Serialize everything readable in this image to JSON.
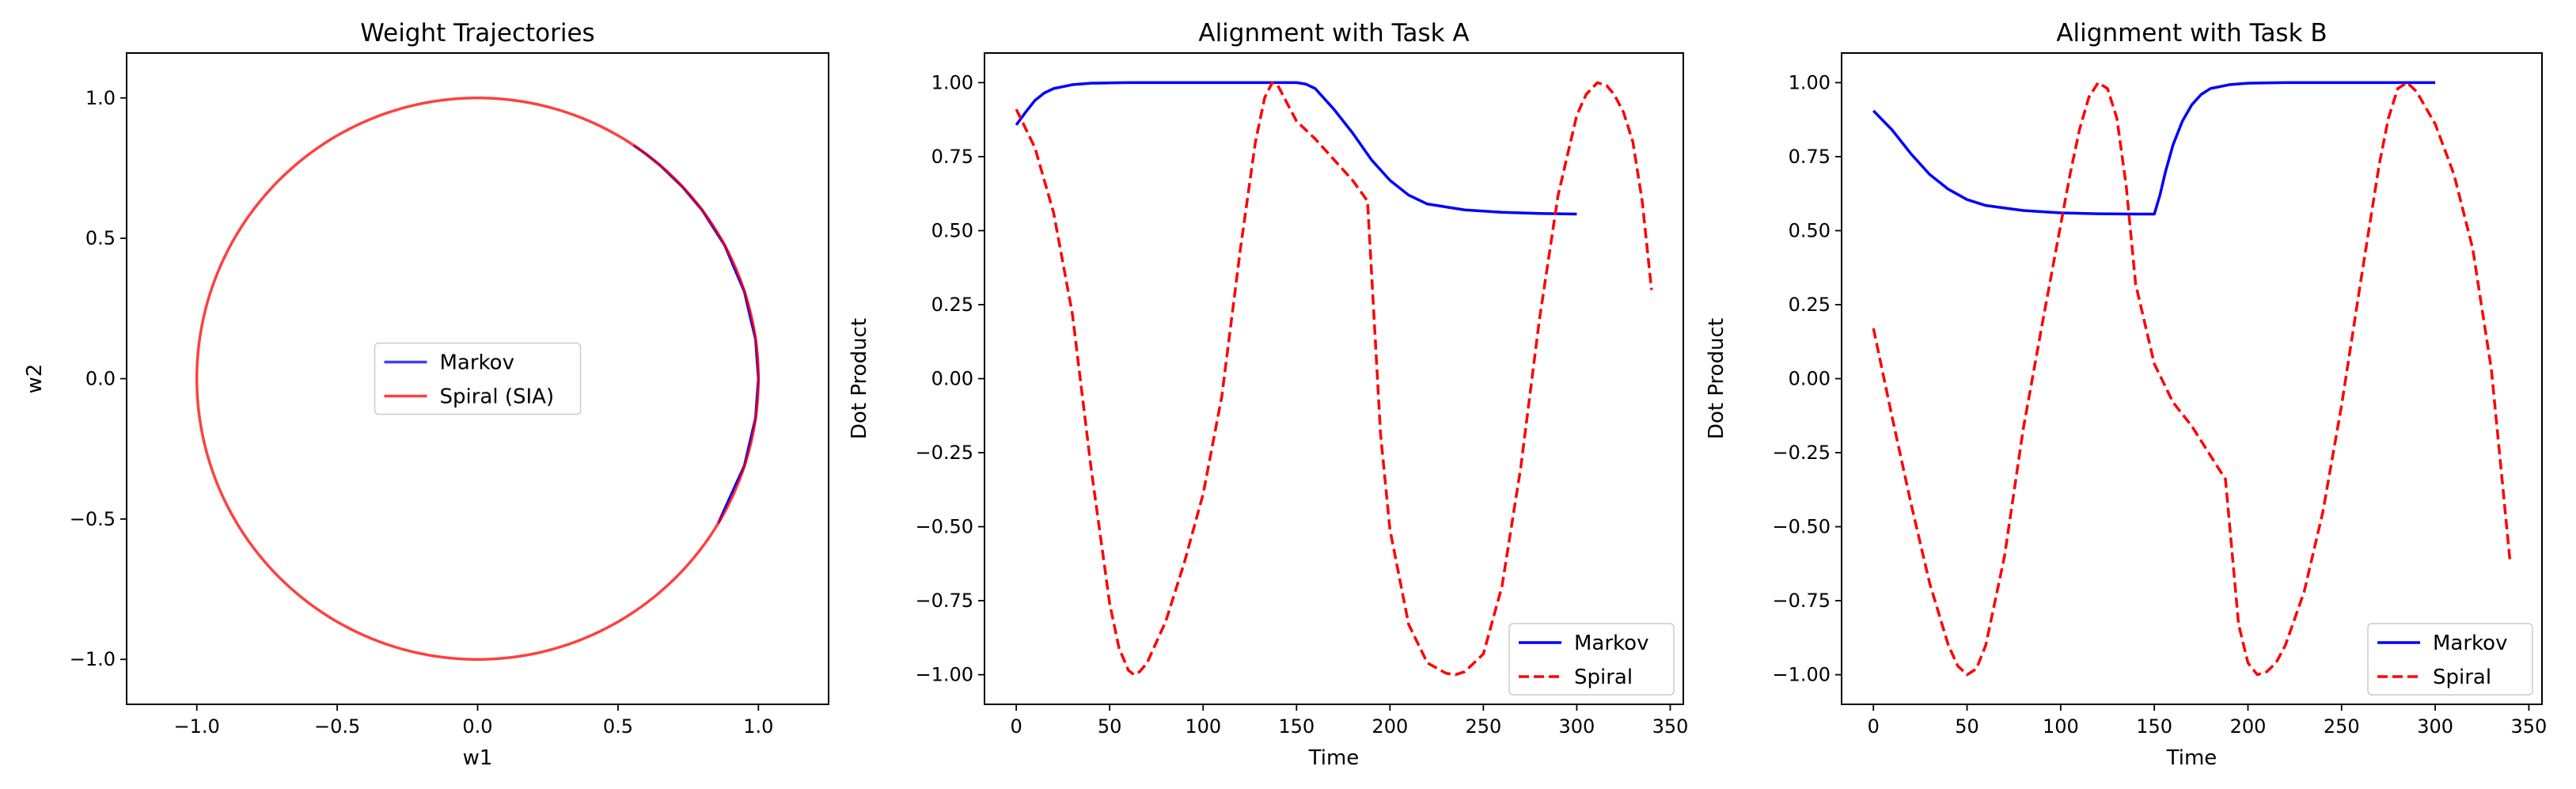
{
  "chart_data": [
    {
      "type": "line",
      "title": "Weight Trajectories",
      "xlabel": "w1",
      "ylabel": "w2",
      "xlim": [
        -1.25,
        1.25
      ],
      "ylim": [
        -1.16,
        1.16
      ],
      "xticks": [
        -1.0,
        -0.5,
        0.0,
        0.5,
        1.0
      ],
      "yticks": [
        -1.0,
        -0.5,
        0.0,
        0.5,
        1.0
      ],
      "xtick_labels": [
        "−1.0",
        "−0.5",
        "0.0",
        "0.5",
        "1.0"
      ],
      "ytick_labels": [
        "−1.0",
        "−0.5",
        "0.0",
        "0.5",
        "1.0"
      ],
      "legend": "center",
      "grid": false,
      "series": [
        {
          "name": "Markov",
          "color": "#0000ff",
          "style": "solid",
          "x": [
            0.857,
            0.95,
            0.99,
            1.0,
            0.99,
            0.95,
            0.88,
            0.8,
            0.73,
            0.65,
            0.6,
            0.556
          ],
          "y": [
            -0.515,
            -0.31,
            -0.14,
            0.0,
            0.14,
            0.31,
            0.475,
            0.6,
            0.683,
            0.76,
            0.8,
            0.831
          ]
        },
        {
          "name": "Spiral (SIA)",
          "color": "#ff0000",
          "style": "solid",
          "parametric": "unit-circle",
          "radius": 1.0
        }
      ]
    },
    {
      "type": "line",
      "title": "Alignment with Task A",
      "xlabel": "Time",
      "ylabel": "Dot Product",
      "xlim": [
        -17,
        357
      ],
      "ylim": [
        -1.1,
        1.1
      ],
      "xticks": [
        0,
        50,
        100,
        150,
        200,
        250,
        300,
        350
      ],
      "yticks": [
        1.0,
        0.75,
        0.5,
        0.25,
        0.0,
        -0.25,
        -0.5,
        -0.75,
        -1.0
      ],
      "xtick_labels": [
        "0",
        "50",
        "100",
        "150",
        "200",
        "250",
        "300",
        "350"
      ],
      "ytick_labels": [
        "1.00",
        "0.75",
        "0.50",
        "0.25",
        "0.00",
        "−0.25",
        "−0.50",
        "−0.75",
        "−1.00"
      ],
      "legend": "bottom-right",
      "grid": false,
      "series": [
        {
          "name": "Markov",
          "color": "#0000ff",
          "style": "solid",
          "x": [
            0,
            5,
            10,
            15,
            20,
            30,
            40,
            50,
            60,
            80,
            100,
            120,
            140,
            150,
            155,
            160,
            170,
            180,
            190,
            200,
            210,
            220,
            240,
            260,
            280,
            300
          ],
          "y": [
            0.857,
            0.9,
            0.94,
            0.965,
            0.98,
            0.993,
            0.998,
            0.999,
            1.0,
            1.0,
            1.0,
            1.0,
            1.0,
            1.0,
            0.995,
            0.98,
            0.91,
            0.83,
            0.74,
            0.67,
            0.62,
            0.59,
            0.57,
            0.562,
            0.558,
            0.556
          ]
        },
        {
          "name": "Spiral",
          "color": "#ff0000",
          "style": "dashed",
          "x": [
            0,
            10,
            20,
            30,
            40,
            50,
            55,
            60,
            63,
            66,
            70,
            80,
            90,
            100,
            110,
            120,
            128,
            133,
            137,
            140,
            145,
            150,
            160,
            170,
            180,
            188,
            195,
            200,
            210,
            220,
            230,
            235,
            240,
            245,
            250,
            260,
            270,
            280,
            290,
            300,
            305,
            311,
            316,
            320,
            325,
            330,
            335,
            340
          ],
          "y": [
            0.91,
            0.78,
            0.56,
            0.22,
            -0.3,
            -0.76,
            -0.91,
            -0.985,
            -1.0,
            -0.99,
            -0.96,
            -0.82,
            -0.62,
            -0.39,
            -0.06,
            0.44,
            0.8,
            0.95,
            1.0,
            0.99,
            0.93,
            0.87,
            0.81,
            0.74,
            0.67,
            0.6,
            -0.19,
            -0.51,
            -0.83,
            -0.96,
            -0.995,
            -1.0,
            -0.99,
            -0.96,
            -0.93,
            -0.7,
            -0.3,
            0.2,
            0.62,
            0.89,
            0.96,
            1.0,
            0.99,
            0.96,
            0.9,
            0.8,
            0.6,
            0.3
          ]
        }
      ]
    },
    {
      "type": "line",
      "title": "Alignment with Task B",
      "xlabel": "Time",
      "ylabel": "Dot Product",
      "xlim": [
        -17,
        357
      ],
      "ylim": [
        -1.1,
        1.1
      ],
      "xticks": [
        0,
        50,
        100,
        150,
        200,
        250,
        300,
        350
      ],
      "yticks": [
        1.0,
        0.75,
        0.5,
        0.25,
        0.0,
        -0.25,
        -0.5,
        -0.75,
        -1.0
      ],
      "xtick_labels": [
        "0",
        "50",
        "100",
        "150",
        "200",
        "250",
        "300",
        "350"
      ],
      "ytick_labels": [
        "1.00",
        "0.75",
        "0.50",
        "0.25",
        "0.00",
        "−0.25",
        "−0.50",
        "−0.75",
        "−1.00"
      ],
      "legend": "bottom-right",
      "grid": false,
      "series": [
        {
          "name": "Markov",
          "color": "#0000ff",
          "style": "solid",
          "x": [
            0,
            10,
            20,
            30,
            40,
            50,
            60,
            80,
            100,
            120,
            140,
            150,
            153,
            156,
            160,
            165,
            170,
            175,
            180,
            190,
            200,
            220,
            250,
            280,
            300
          ],
          "y": [
            0.905,
            0.84,
            0.76,
            0.69,
            0.64,
            0.605,
            0.585,
            0.568,
            0.56,
            0.557,
            0.556,
            0.556,
            0.62,
            0.7,
            0.79,
            0.87,
            0.925,
            0.96,
            0.98,
            0.993,
            0.998,
            1.0,
            1.0,
            1.0,
            1.0
          ]
        },
        {
          "name": "Spiral",
          "color": "#ff0000",
          "style": "dashed",
          "x": [
            0,
            10,
            20,
            30,
            40,
            45,
            50,
            55,
            60,
            70,
            80,
            90,
            100,
            105,
            110,
            115,
            120,
            125,
            130,
            135,
            140,
            150,
            160,
            170,
            180,
            188,
            195,
            200,
            205,
            210,
            215,
            220,
            230,
            240,
            250,
            260,
            270,
            275,
            280,
            285,
            290,
            300,
            310,
            320,
            330,
            340
          ],
          "y": [
            0.17,
            -0.13,
            -0.42,
            -0.69,
            -0.9,
            -0.97,
            -1.0,
            -0.98,
            -0.9,
            -0.6,
            -0.17,
            0.18,
            0.52,
            0.69,
            0.84,
            0.95,
            1.0,
            0.98,
            0.88,
            0.65,
            0.32,
            0.05,
            -0.08,
            -0.16,
            -0.26,
            -0.34,
            -0.83,
            -0.96,
            -1.0,
            -0.99,
            -0.96,
            -0.9,
            -0.72,
            -0.45,
            -0.09,
            0.32,
            0.72,
            0.88,
            0.98,
            1.0,
            0.97,
            0.86,
            0.69,
            0.44,
            0.03,
            -0.62
          ]
        }
      ]
    }
  ]
}
